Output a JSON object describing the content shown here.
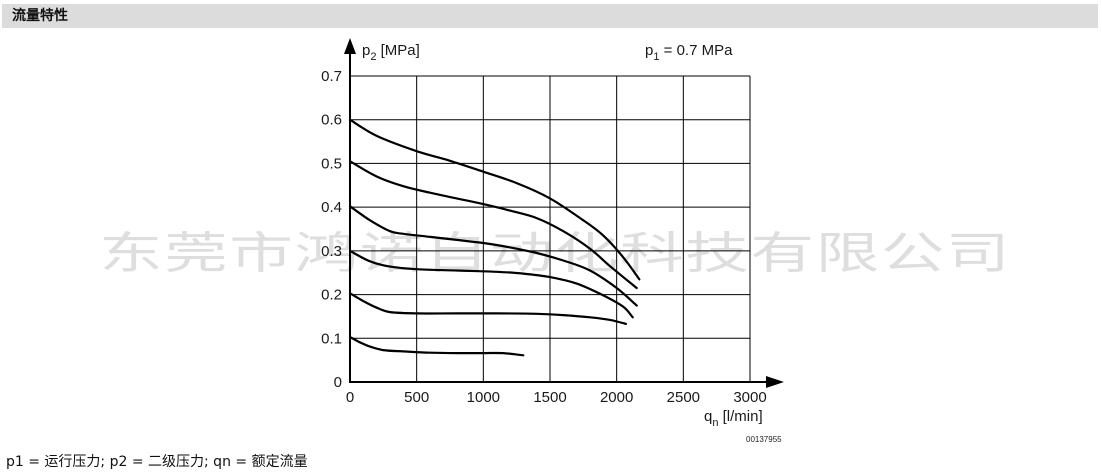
{
  "header": {
    "title": "流量特性"
  },
  "caption": "p1 = 运行压力; p2 = 二级压力; qn = 额定流量",
  "watermark": "东莞市鸿诺自动化科技有限公司",
  "colors": {
    "header_bg": "#dcdcdc",
    "line": "#000000",
    "grid": "#000000"
  },
  "chart_data": {
    "type": "line",
    "title": "",
    "ylabel": {
      "base": "p",
      "sub": "2",
      "rest": " [MPa]"
    },
    "xlabel": {
      "base": "q",
      "sub": "n",
      "rest": " [l/min]"
    },
    "annotation": {
      "base": "p",
      "sub": "1",
      "rest": " = 0.7 MPa"
    },
    "code": "00137955",
    "xlim": [
      0,
      3000
    ],
    "ylim": [
      0,
      0.7
    ],
    "xticks": [
      0,
      500,
      1000,
      1500,
      2000,
      2500,
      3000
    ],
    "yticks": [
      0,
      0.1,
      0.2,
      0.3,
      0.4,
      0.5,
      0.6,
      0.7
    ],
    "xtick_labels": [
      "0",
      "500",
      "1000",
      "1500",
      "2000",
      "2500",
      "3000"
    ],
    "ytick_labels": [
      "0",
      "0.1",
      "0.2",
      "0.3",
      "0.4",
      "0.5",
      "0.6",
      "0.7"
    ],
    "grid": true,
    "series": [
      {
        "points": [
          [
            0,
            0.6
          ],
          [
            200,
            0.563
          ],
          [
            500,
            0.528
          ],
          [
            750,
            0.506
          ],
          [
            1000,
            0.481
          ],
          [
            1250,
            0.455
          ],
          [
            1500,
            0.42
          ],
          [
            1750,
            0.37
          ],
          [
            1900,
            0.335
          ],
          [
            2050,
            0.285
          ],
          [
            2170,
            0.235
          ]
        ]
      },
      {
        "points": [
          [
            0,
            0.505
          ],
          [
            200,
            0.47
          ],
          [
            400,
            0.448
          ],
          [
            600,
            0.433
          ],
          [
            800,
            0.42
          ],
          [
            1000,
            0.407
          ],
          [
            1200,
            0.392
          ],
          [
            1400,
            0.375
          ],
          [
            1600,
            0.345
          ],
          [
            1800,
            0.305
          ],
          [
            1950,
            0.265
          ],
          [
            2150,
            0.215
          ]
        ]
      },
      {
        "points": [
          [
            0,
            0.402
          ],
          [
            150,
            0.37
          ],
          [
            300,
            0.345
          ],
          [
            400,
            0.339
          ],
          [
            600,
            0.332
          ],
          [
            800,
            0.325
          ],
          [
            1000,
            0.318
          ],
          [
            1200,
            0.308
          ],
          [
            1400,
            0.295
          ],
          [
            1600,
            0.278
          ],
          [
            1800,
            0.255
          ],
          [
            2000,
            0.215
          ],
          [
            2150,
            0.175
          ]
        ]
      },
      {
        "points": [
          [
            0,
            0.3
          ],
          [
            150,
            0.276
          ],
          [
            300,
            0.264
          ],
          [
            500,
            0.258
          ],
          [
            800,
            0.255
          ],
          [
            1100,
            0.252
          ],
          [
            1300,
            0.248
          ],
          [
            1500,
            0.24
          ],
          [
            1700,
            0.225
          ],
          [
            1900,
            0.198
          ],
          [
            2050,
            0.172
          ],
          [
            2120,
            0.148
          ]
        ]
      },
      {
        "points": [
          [
            0,
            0.203
          ],
          [
            100,
            0.185
          ],
          [
            200,
            0.17
          ],
          [
            300,
            0.16
          ],
          [
            500,
            0.157
          ],
          [
            800,
            0.157
          ],
          [
            1100,
            0.157
          ],
          [
            1400,
            0.156
          ],
          [
            1600,
            0.153
          ],
          [
            1800,
            0.148
          ],
          [
            1950,
            0.142
          ],
          [
            2070,
            0.133
          ]
        ]
      },
      {
        "points": [
          [
            0,
            0.103
          ],
          [
            80,
            0.09
          ],
          [
            150,
            0.081
          ],
          [
            250,
            0.073
          ],
          [
            400,
            0.07
          ],
          [
            600,
            0.067
          ],
          [
            800,
            0.066
          ],
          [
            1000,
            0.066
          ],
          [
            1150,
            0.066
          ],
          [
            1300,
            0.061
          ]
        ]
      }
    ]
  }
}
